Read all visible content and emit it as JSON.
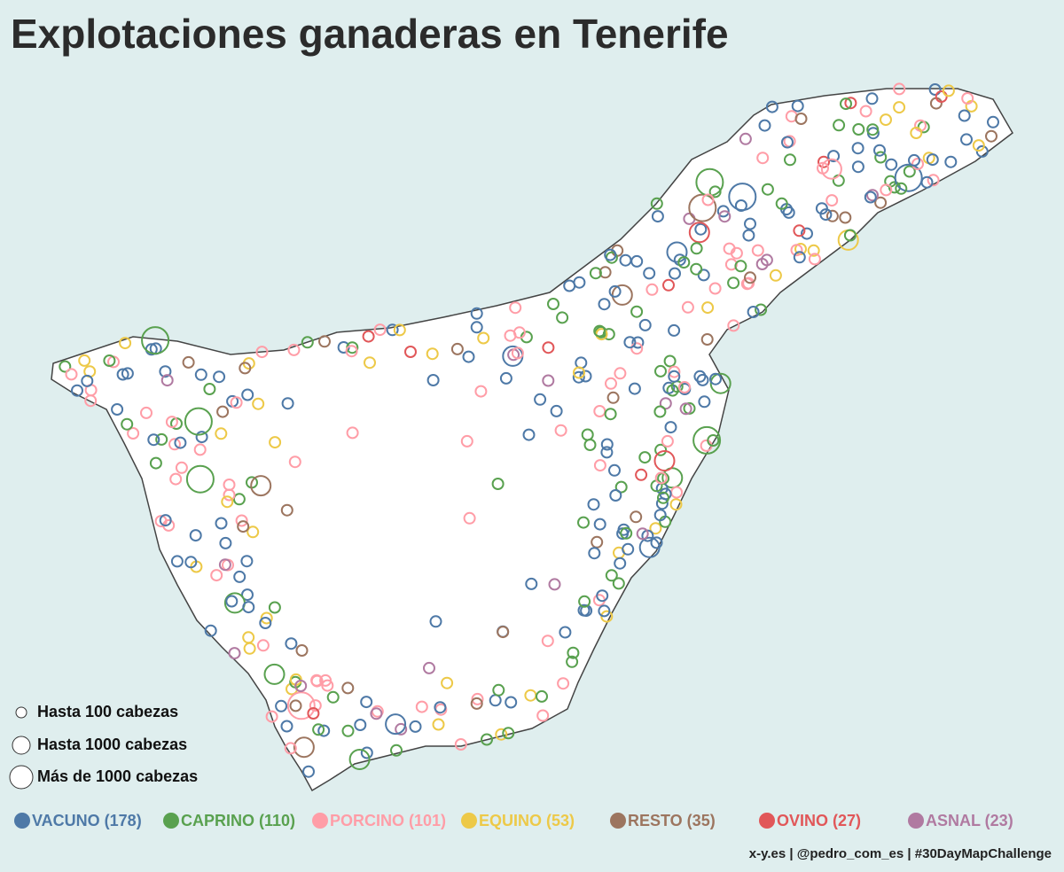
{
  "header": {
    "title": "Explotaciones ganaderas en Tenerife"
  },
  "size_legend": [
    "Hasta 100 cabezas",
    "Hasta 1000 cabezas",
    "Más de 1000 cabezas"
  ],
  "categories": [
    {
      "label": "VACUNO (178)",
      "color": "#4e79a7"
    },
    {
      "label": "CAPRINO (110)",
      "color": "#59a14f"
    },
    {
      "label": "PORCINO (101)",
      "color": "#ff9da7"
    },
    {
      "label": "EQUINO (53)",
      "color": "#edc948"
    },
    {
      "label": "RESTO (35)",
      "color": "#9c755f"
    },
    {
      "label": "OVINO (27)",
      "color": "#e15759"
    },
    {
      "label": "ASNAL (23)",
      "color": "#b07aa1"
    }
  ],
  "credit": "x-y.es | @pedro_com_es | #30DayMapChallenge"
}
